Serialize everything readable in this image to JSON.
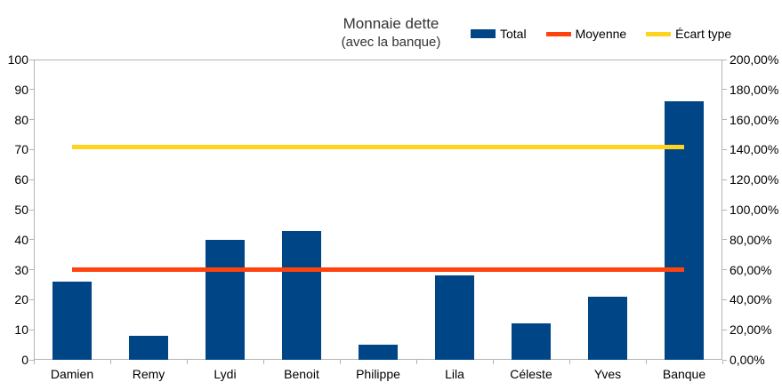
{
  "title": "Monnaie dette",
  "subtitle": "(avec la banque)",
  "legend": {
    "items": [
      {
        "label": "Total",
        "color": "#004586",
        "shape": "box"
      },
      {
        "label": "Moyenne",
        "color": "#FF420E",
        "shape": "line"
      },
      {
        "label": "Écart type",
        "color": "#FFD320",
        "shape": "line"
      }
    ]
  },
  "chart_data": {
    "type": "bar+line",
    "title": "Monnaie dette",
    "subtitle": "(avec la banque)",
    "categories": [
      "Damien",
      "Remy",
      "Lydi",
      "Benoit",
      "Philippe",
      "Lila",
      "Céleste",
      "Yves",
      "Banque"
    ],
    "series": [
      {
        "name": "Total",
        "plot": "bar",
        "axis": "left",
        "color": "#004586",
        "values": [
          26,
          8,
          40,
          43,
          5,
          28,
          12,
          21,
          86
        ]
      },
      {
        "name": "Moyenne",
        "plot": "line",
        "axis": "right",
        "color": "#FF420E",
        "values": [
          60,
          60,
          60,
          60,
          60,
          60,
          60,
          60,
          60
        ]
      },
      {
        "name": "Écart type",
        "plot": "line",
        "axis": "right",
        "color": "#FFD320",
        "values": [
          142,
          142,
          142,
          142,
          142,
          142,
          142,
          142,
          142
        ]
      }
    ],
    "axes": {
      "left": {
        "min": 0,
        "max": 100,
        "step": 10,
        "tick_labels": [
          "0",
          "10",
          "20",
          "30",
          "40",
          "50",
          "60",
          "70",
          "80",
          "90",
          "100"
        ]
      },
      "right": {
        "min": 0,
        "max": 200,
        "step": 20,
        "tick_labels": [
          "0,00%",
          "20,00%",
          "40,00%",
          "60,00%",
          "80,00%",
          "100,00%",
          "120,00%",
          "140,00%",
          "160,00%",
          "180,00%",
          "200,00%"
        ]
      }
    },
    "grid": false,
    "legend_position": "top"
  }
}
